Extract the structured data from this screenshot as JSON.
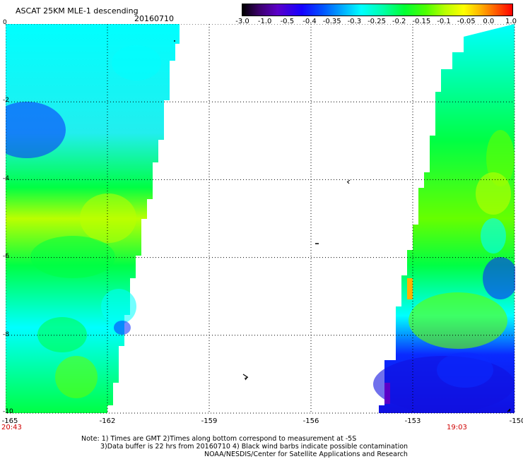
{
  "header": {
    "title": "ASCAT 25KM MLE-1 descending",
    "date": "20160710"
  },
  "colorbar": {
    "labels": [
      "-3.0",
      "-1.0",
      "-0.5",
      "-0.4",
      "-0.35",
      "-0.3",
      "-0.25",
      "-0.2",
      "-0.15",
      "-0.1",
      "-0.05",
      "0.0",
      "1.0"
    ]
  },
  "axes": {
    "lat_labels": [
      "0",
      "-2",
      "-4",
      "-6",
      "-8",
      "-10"
    ],
    "lon_labels": [
      "-165",
      "-162",
      "-159",
      "-156",
      "-153",
      "-150"
    ]
  },
  "times": {
    "left": "20:43",
    "right": "19:03"
  },
  "footer": {
    "line1": "Note: 1) Times are GMT 2)Times along bottom correspond to measurement at -5S",
    "line2": "3)Data buffer is 22 hrs from 20160710 4) Black wind barbs indicate possible contamination",
    "line3": "NOAA/NESDIS/Center for Satellite Applications and Research"
  },
  "colors": {
    "cyan": "#00ffff",
    "light_cyan": "#22eeee",
    "green": "#00ff44",
    "lime": "#66ff00",
    "yellow_green": "#bbff00",
    "blue": "#0a2aff",
    "deep_blue": "#1010e0",
    "orange": "#ffb000",
    "purple": "#5b00c8",
    "time_red": "#d00000"
  }
}
